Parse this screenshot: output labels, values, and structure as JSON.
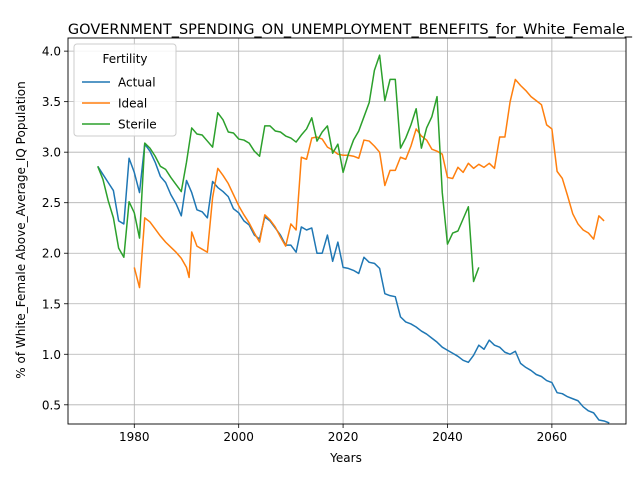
{
  "chart_data": {
    "type": "line",
    "title": "GOVERNMENT_SPENDING_ON_UNEMPLOYMENT_BENEFITS_for_White_Female_",
    "xlabel": "Years",
    "ylabel": "% of White_Female Above_Average_IQ Population",
    "xlim": [
      1967.3,
      2074.2
    ],
    "ylim": [
      0.31,
      4.13
    ],
    "xticks": [
      1980,
      2000,
      2020,
      2040,
      2060
    ],
    "yticks": [
      0.5,
      1.0,
      1.5,
      2.0,
      2.5,
      3.0,
      3.5,
      4.0
    ],
    "grid": true,
    "legend": {
      "title": "Fertility",
      "placement": "top-left"
    },
    "series": [
      {
        "name": "Actual",
        "color": "#1f77b4",
        "points": [
          [
            1973,
            2.86
          ],
          [
            1974,
            2.78
          ],
          [
            1975,
            2.7
          ],
          [
            1976,
            2.62
          ],
          [
            1977,
            2.32
          ],
          [
            1978,
            2.29
          ],
          [
            1979,
            2.94
          ],
          [
            1980,
            2.8
          ],
          [
            1981,
            2.6
          ],
          [
            1982,
            3.08
          ],
          [
            1983,
            3.01
          ],
          [
            1984,
            2.9
          ],
          [
            1985,
            2.76
          ],
          [
            1986,
            2.7
          ],
          [
            1987,
            2.58
          ],
          [
            1988,
            2.49
          ],
          [
            1989,
            2.37
          ],
          [
            1990,
            2.72
          ],
          [
            1991,
            2.6
          ],
          [
            1992,
            2.43
          ],
          [
            1993,
            2.41
          ],
          [
            1994,
            2.35
          ],
          [
            1995,
            2.71
          ],
          [
            1996,
            2.65
          ],
          [
            1997,
            2.61
          ],
          [
            1998,
            2.56
          ],
          [
            1999,
            2.44
          ],
          [
            2000,
            2.4
          ],
          [
            2001,
            2.32
          ],
          [
            2002,
            2.28
          ],
          [
            2003,
            2.18
          ],
          [
            2004,
            2.14
          ],
          [
            2005,
            2.36
          ],
          [
            2006,
            2.32
          ],
          [
            2007,
            2.25
          ],
          [
            2008,
            2.18
          ],
          [
            2009,
            2.08
          ],
          [
            2010,
            2.08
          ],
          [
            2011,
            2.01
          ],
          [
            2012,
            2.26
          ],
          [
            2013,
            2.23
          ],
          [
            2014,
            2.25
          ],
          [
            2015,
            2.0
          ],
          [
            2016,
            2.0
          ],
          [
            2017,
            2.18
          ],
          [
            2018,
            1.92
          ],
          [
            2019,
            2.11
          ],
          [
            2020,
            1.86
          ],
          [
            2021,
            1.85
          ],
          [
            2022,
            1.83
          ],
          [
            2023,
            1.8
          ],
          [
            2024,
            1.96
          ],
          [
            2025,
            1.91
          ],
          [
            2026,
            1.9
          ],
          [
            2027,
            1.85
          ],
          [
            2028,
            1.6
          ],
          [
            2029,
            1.58
          ],
          [
            2030,
            1.57
          ],
          [
            2031,
            1.37
          ],
          [
            2032,
            1.32
          ],
          [
            2033,
            1.3
          ],
          [
            2034,
            1.27
          ],
          [
            2035,
            1.23
          ],
          [
            2036,
            1.2
          ],
          [
            2037,
            1.16
          ],
          [
            2038,
            1.12
          ],
          [
            2039,
            1.07
          ],
          [
            2040,
            1.04
          ],
          [
            2041,
            1.01
          ],
          [
            2042,
            0.98
          ],
          [
            2043,
            0.94
          ],
          [
            2044,
            0.92
          ],
          [
            2045,
            0.99
          ],
          [
            2046,
            1.09
          ],
          [
            2047,
            1.05
          ],
          [
            2048,
            1.14
          ],
          [
            2049,
            1.09
          ],
          [
            2050,
            1.07
          ],
          [
            2051,
            1.02
          ],
          [
            2052,
            1.0
          ],
          [
            2053,
            1.03
          ],
          [
            2054,
            0.91
          ],
          [
            2055,
            0.87
          ],
          [
            2056,
            0.84
          ],
          [
            2057,
            0.8
          ],
          [
            2058,
            0.78
          ],
          [
            2059,
            0.74
          ],
          [
            2060,
            0.72
          ],
          [
            2061,
            0.62
          ],
          [
            2062,
            0.61
          ],
          [
            2063,
            0.58
          ],
          [
            2064,
            0.56
          ],
          [
            2065,
            0.54
          ],
          [
            2066,
            0.48
          ],
          [
            2067,
            0.44
          ],
          [
            2068,
            0.42
          ],
          [
            2069,
            0.35
          ],
          [
            2070,
            0.34
          ],
          [
            2071,
            0.32
          ]
        ]
      },
      {
        "name": "Ideal",
        "color": "#ff7f0e",
        "points": [
          [
            1980,
            1.86
          ],
          [
            1981,
            1.66
          ],
          [
            1982,
            2.35
          ],
          [
            1983,
            2.31
          ],
          [
            1984,
            2.24
          ],
          [
            1985,
            2.17
          ],
          [
            1986,
            2.11
          ],
          [
            1987,
            2.06
          ],
          [
            1988,
            2.01
          ],
          [
            1989,
            1.95
          ],
          [
            1990,
            1.86
          ],
          [
            1990.5,
            1.76
          ],
          [
            1991,
            2.21
          ],
          [
            1992,
            2.07
          ],
          [
            1993,
            2.04
          ],
          [
            1994,
            2.01
          ],
          [
            1995,
            2.55
          ],
          [
            1996,
            2.84
          ],
          [
            1997,
            2.77
          ],
          [
            1998,
            2.69
          ],
          [
            1999,
            2.58
          ],
          [
            2000,
            2.47
          ],
          [
            2001,
            2.38
          ],
          [
            2002,
            2.3
          ],
          [
            2003,
            2.2
          ],
          [
            2004,
            2.11
          ],
          [
            2005,
            2.38
          ],
          [
            2006,
            2.33
          ],
          [
            2007,
            2.26
          ],
          [
            2008,
            2.16
          ],
          [
            2009,
            2.07
          ],
          [
            2010,
            2.29
          ],
          [
            2011,
            2.23
          ],
          [
            2012,
            2.95
          ],
          [
            2013,
            2.93
          ],
          [
            2014,
            3.14
          ],
          [
            2015,
            3.15
          ],
          [
            2016,
            3.13
          ],
          [
            2017,
            3.05
          ],
          [
            2018,
            3.02
          ],
          [
            2019,
            2.98
          ],
          [
            2020,
            2.97
          ],
          [
            2021,
            2.97
          ],
          [
            2022,
            2.96
          ],
          [
            2023,
            2.94
          ],
          [
            2024,
            3.12
          ],
          [
            2025,
            3.11
          ],
          [
            2026,
            3.06
          ],
          [
            2027,
            3.0
          ],
          [
            2028,
            2.67
          ],
          [
            2029,
            2.82
          ],
          [
            2030,
            2.82
          ],
          [
            2031,
            2.95
          ],
          [
            2032,
            2.93
          ],
          [
            2033,
            3.06
          ],
          [
            2034,
            3.23
          ],
          [
            2035,
            3.16
          ],
          [
            2036,
            3.12
          ],
          [
            2037,
            3.03
          ],
          [
            2038,
            3.01
          ],
          [
            2039,
            2.98
          ],
          [
            2040,
            2.75
          ],
          [
            2041,
            2.74
          ],
          [
            2042,
            2.85
          ],
          [
            2043,
            2.8
          ],
          [
            2044,
            2.89
          ],
          [
            2045,
            2.84
          ],
          [
            2046,
            2.88
          ],
          [
            2047,
            2.85
          ],
          [
            2048,
            2.89
          ],
          [
            2049,
            2.84
          ],
          [
            2050,
            3.15
          ],
          [
            2051,
            3.15
          ],
          [
            2052,
            3.5
          ],
          [
            2053,
            3.72
          ],
          [
            2054,
            3.66
          ],
          [
            2055,
            3.61
          ],
          [
            2056,
            3.55
          ],
          [
            2057,
            3.51
          ],
          [
            2058,
            3.47
          ],
          [
            2059,
            3.27
          ],
          [
            2060,
            3.23
          ],
          [
            2061,
            2.81
          ],
          [
            2062,
            2.74
          ],
          [
            2063,
            2.57
          ],
          [
            2064,
            2.39
          ],
          [
            2065,
            2.29
          ],
          [
            2066,
            2.23
          ],
          [
            2067,
            2.2
          ],
          [
            2068,
            2.14
          ],
          [
            2069,
            2.37
          ],
          [
            2070,
            2.32
          ]
        ]
      },
      {
        "name": "Sterile",
        "color": "#2ca02c",
        "points": [
          [
            1973,
            2.86
          ],
          [
            1974,
            2.73
          ],
          [
            1975,
            2.52
          ],
          [
            1976,
            2.35
          ],
          [
            1977,
            2.05
          ],
          [
            1978,
            1.96
          ],
          [
            1979,
            2.51
          ],
          [
            1980,
            2.4
          ],
          [
            1981,
            2.15
          ],
          [
            1982,
            3.09
          ],
          [
            1983,
            3.04
          ],
          [
            1984,
            2.96
          ],
          [
            1985,
            2.86
          ],
          [
            1986,
            2.83
          ],
          [
            1987,
            2.75
          ],
          [
            1988,
            2.68
          ],
          [
            1989,
            2.61
          ],
          [
            1990,
            2.9
          ],
          [
            1991,
            3.24
          ],
          [
            1992,
            3.18
          ],
          [
            1993,
            3.17
          ],
          [
            1994,
            3.11
          ],
          [
            1995,
            3.05
          ],
          [
            1996,
            3.39
          ],
          [
            1997,
            3.32
          ],
          [
            1998,
            3.2
          ],
          [
            1999,
            3.19
          ],
          [
            2000,
            3.13
          ],
          [
            2001,
            3.12
          ],
          [
            2002,
            3.09
          ],
          [
            2003,
            3.01
          ],
          [
            2004,
            2.96
          ],
          [
            2005,
            3.26
          ],
          [
            2006,
            3.26
          ],
          [
            2007,
            3.21
          ],
          [
            2008,
            3.2
          ],
          [
            2009,
            3.16
          ],
          [
            2010,
            3.14
          ],
          [
            2011,
            3.1
          ],
          [
            2012,
            3.17
          ],
          [
            2013,
            3.23
          ],
          [
            2014,
            3.34
          ],
          [
            2015,
            3.11
          ],
          [
            2016,
            3.2
          ],
          [
            2017,
            3.26
          ],
          [
            2018,
            2.99
          ],
          [
            2019,
            3.08
          ],
          [
            2020,
            2.8
          ],
          [
            2021,
            2.98
          ],
          [
            2022,
            3.12
          ],
          [
            2023,
            3.21
          ],
          [
            2024,
            3.35
          ],
          [
            2025,
            3.49
          ],
          [
            2026,
            3.81
          ],
          [
            2027,
            3.96
          ],
          [
            2028,
            3.51
          ],
          [
            2029,
            3.72
          ],
          [
            2030,
            3.72
          ],
          [
            2031,
            3.04
          ],
          [
            2032,
            3.14
          ],
          [
            2033,
            3.27
          ],
          [
            2034,
            3.43
          ],
          [
            2035,
            3.04
          ],
          [
            2036,
            3.24
          ],
          [
            2037,
            3.35
          ],
          [
            2038,
            3.55
          ],
          [
            2039,
            2.6
          ],
          [
            2040,
            2.09
          ],
          [
            2041,
            2.2
          ],
          [
            2042,
            2.22
          ],
          [
            2043,
            2.34
          ],
          [
            2044,
            2.46
          ],
          [
            2045,
            1.72
          ],
          [
            2046,
            1.86
          ]
        ]
      }
    ]
  }
}
